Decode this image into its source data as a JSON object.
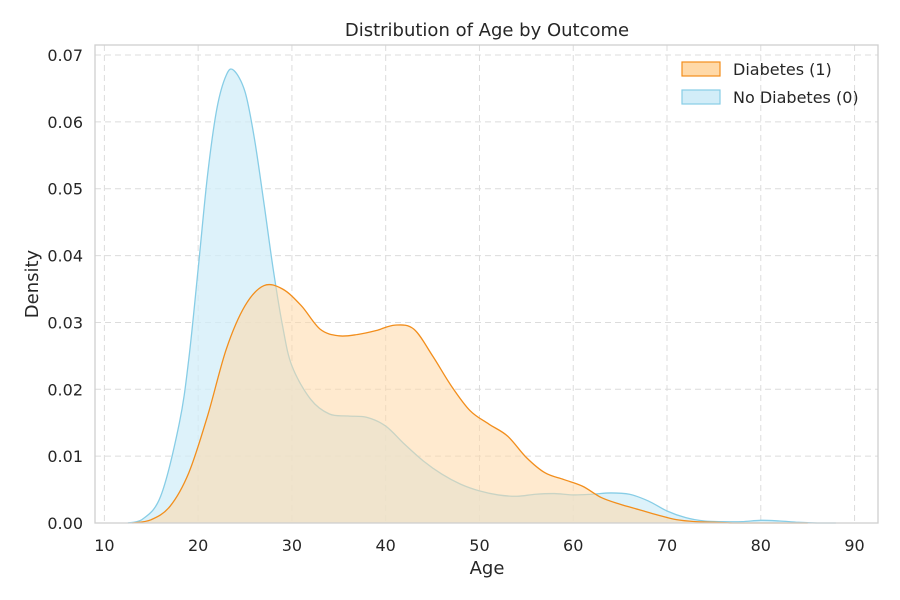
{
  "chart_data": {
    "type": "area",
    "title": "Distribution of Age by Outcome",
    "xlabel": "Age",
    "ylabel": "Density",
    "xlim": [
      9,
      92.5
    ],
    "ylim": [
      0,
      0.0715
    ],
    "xticks": [
      10,
      20,
      30,
      40,
      50,
      60,
      70,
      80,
      90
    ],
    "yticks": [
      0.0,
      0.01,
      0.02,
      0.03,
      0.04,
      0.05,
      0.06,
      0.07
    ],
    "grid": true,
    "legend_position": "top-right",
    "series": [
      {
        "name": "Diabetes (1)",
        "color": "#f28e1c",
        "fill": "#ffd9a8",
        "x": [
          13,
          15,
          17,
          19,
          21,
          23,
          25,
          27,
          29,
          31,
          33,
          35,
          37,
          39,
          41,
          43,
          45,
          47,
          49,
          51,
          53,
          55,
          57,
          59,
          61,
          63,
          65,
          67,
          69,
          71,
          73,
          75,
          77,
          79,
          81,
          83,
          85
        ],
        "y": [
          0.0,
          0.0005,
          0.0025,
          0.0075,
          0.016,
          0.026,
          0.0325,
          0.0355,
          0.035,
          0.0325,
          0.029,
          0.028,
          0.0282,
          0.0288,
          0.0296,
          0.029,
          0.025,
          0.0205,
          0.0168,
          0.0148,
          0.013,
          0.0098,
          0.0075,
          0.0065,
          0.0055,
          0.0038,
          0.0028,
          0.002,
          0.0012,
          0.0005,
          0.0002,
          0.0001,
          0.0,
          0.0,
          0.0,
          0.0,
          0.0
        ]
      },
      {
        "name": "No Diabetes (0)",
        "color": "#87cde6",
        "fill": "#d2edf8",
        "x": [
          12.5,
          14,
          16,
          18,
          19,
          20,
          21,
          22,
          23,
          23.8,
          25,
          26,
          27,
          28,
          29,
          30,
          32,
          34,
          36,
          38,
          40,
          42,
          44,
          46,
          48,
          50,
          52,
          54,
          56,
          58,
          60,
          62,
          64,
          66,
          68,
          70,
          72,
          74,
          76,
          78,
          80,
          82,
          84,
          86,
          88
        ],
        "y": [
          0.0,
          0.0005,
          0.004,
          0.015,
          0.0245,
          0.038,
          0.052,
          0.062,
          0.067,
          0.0677,
          0.0645,
          0.0575,
          0.048,
          0.038,
          0.0295,
          0.0235,
          0.0185,
          0.0163,
          0.016,
          0.0158,
          0.0145,
          0.0118,
          0.0093,
          0.0073,
          0.0058,
          0.0048,
          0.0042,
          0.004,
          0.0043,
          0.0044,
          0.0042,
          0.0043,
          0.0045,
          0.0043,
          0.0033,
          0.0018,
          0.0008,
          0.0003,
          0.0002,
          0.0002,
          0.0004,
          0.0003,
          0.0001,
          0.0,
          0.0
        ]
      }
    ]
  }
}
